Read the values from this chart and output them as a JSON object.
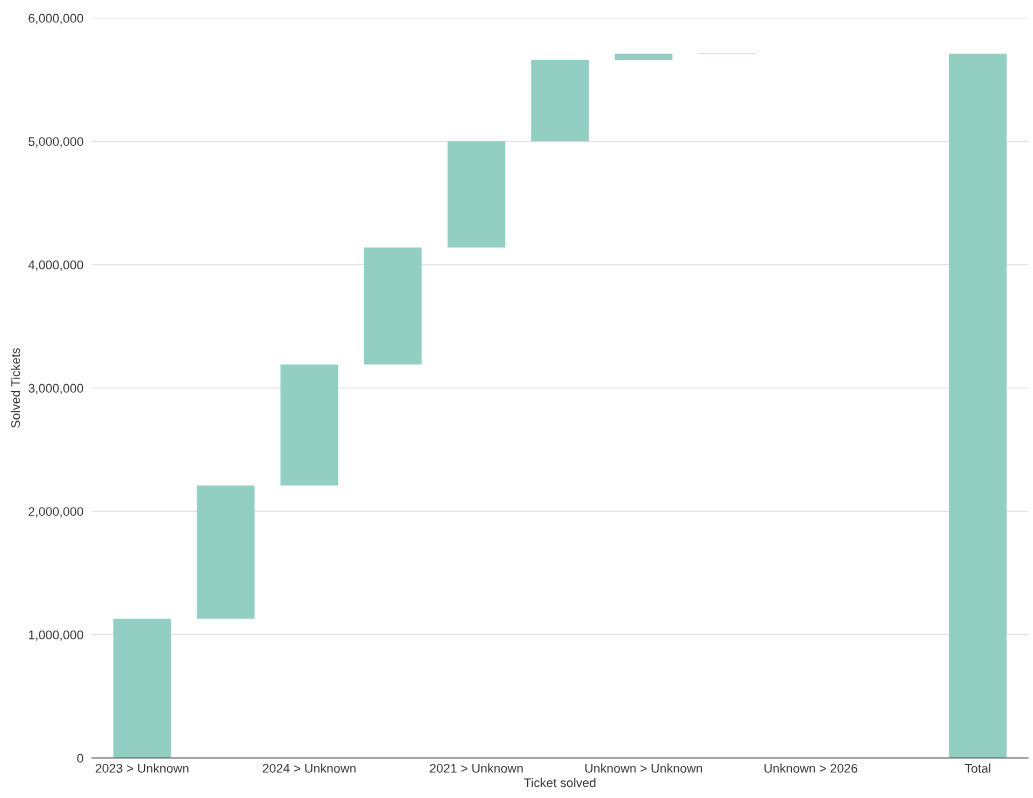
{
  "chart_data": {
    "type": "bar",
    "xlabel": "Ticket solved",
    "ylabel": "Solved Tickets",
    "categories": [
      "2023 > Unknown",
      null,
      "2024 > Unknown",
      null,
      "2021 > Unknown",
      null,
      "Unknown > Unknown",
      null,
      "Unknown > 2026",
      null,
      "Total"
    ],
    "values": [
      1130000,
      1080000,
      980000,
      950000,
      860000,
      660000,
      50000,
      5000,
      null,
      null,
      5710000
    ],
    "base": [
      0,
      1130000,
      2210000,
      3190000,
      4140000,
      5000000,
      5660000,
      5710000,
      null,
      null,
      0
    ],
    "color": "#92cfc2",
    "ylim": [
      0,
      6000000
    ],
    "yticks": [
      {
        "value": 0,
        "label": "0"
      },
      {
        "value": 1000000,
        "label": "1,000,000"
      },
      {
        "value": 2000000,
        "label": "2,000,000"
      },
      {
        "value": 3000000,
        "label": "3,000,000"
      },
      {
        "value": 4000000,
        "label": "4,000,000"
      },
      {
        "value": 5000000,
        "label": "5,000,000"
      },
      {
        "value": 6000000,
        "label": "6,000,000"
      }
    ],
    "grid": "y",
    "legend": false
  }
}
